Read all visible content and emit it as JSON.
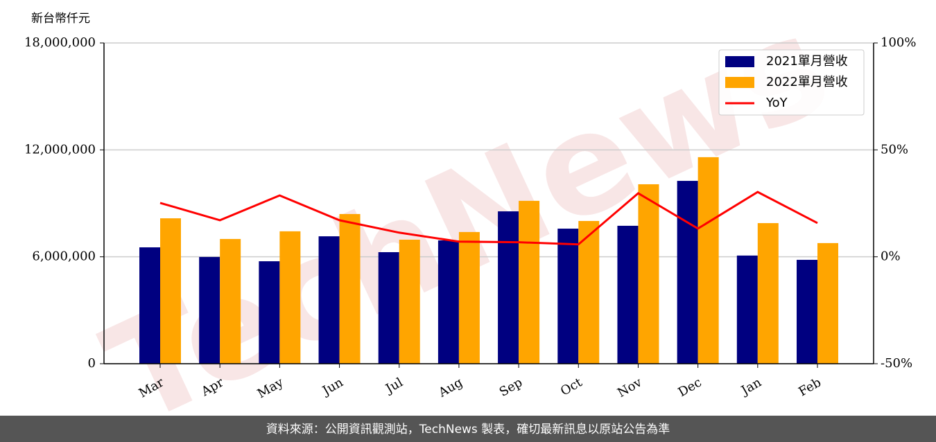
{
  "chart_data": {
    "type": "bar",
    "y_label": "新台幣仟元",
    "watermark": "TechNews",
    "footer": "資料來源：公開資訊觀測站，TechNews 製表，確切最新訊息以原站公告為準",
    "categories": [
      "Mar",
      "Apr",
      "May",
      "Jun",
      "Jul",
      "Aug",
      "Sep",
      "Oct",
      "Nov",
      "Dec",
      "Jan",
      "Feb"
    ],
    "series": [
      {
        "name": "2021單月營收",
        "color": "#000080",
        "values": [
          6530000,
          5990000,
          5750000,
          7150000,
          6260000,
          6920000,
          8550000,
          7580000,
          7740000,
          10260000,
          6070000,
          5830000
        ]
      },
      {
        "name": "2022單月營收",
        "color": "#ffa500",
        "values": [
          8160000,
          7000000,
          7430000,
          8400000,
          6960000,
          7390000,
          9140000,
          8010000,
          10070000,
          11590000,
          7890000,
          6770000
        ]
      },
      {
        "name": "YoY",
        "color": "#ff0000",
        "chart": "line",
        "axis": "y2",
        "values": [
          25.2,
          17.1,
          28.7,
          17.1,
          11.3,
          7.1,
          6.8,
          5.8,
          29.7,
          13.2,
          30.3,
          15.8
        ]
      }
    ],
    "ylim": [
      0,
      18000000
    ],
    "yticks": [
      0,
      {
        "value": 6000000,
        "label": "6,000,000"
      },
      {
        "value": 12000000,
        "label": "12,000,000"
      },
      {
        "value": 18000000,
        "label": "18,000,000"
      }
    ],
    "y2lim": [
      -50,
      100
    ],
    "y2ticks": [
      {
        "value": -50,
        "label": "-50%"
      },
      {
        "value": 0,
        "label": "0%"
      },
      {
        "value": 50,
        "label": "50%"
      },
      {
        "value": 100,
        "label": "100%"
      }
    ],
    "grid": true,
    "legend": "upper right"
  }
}
